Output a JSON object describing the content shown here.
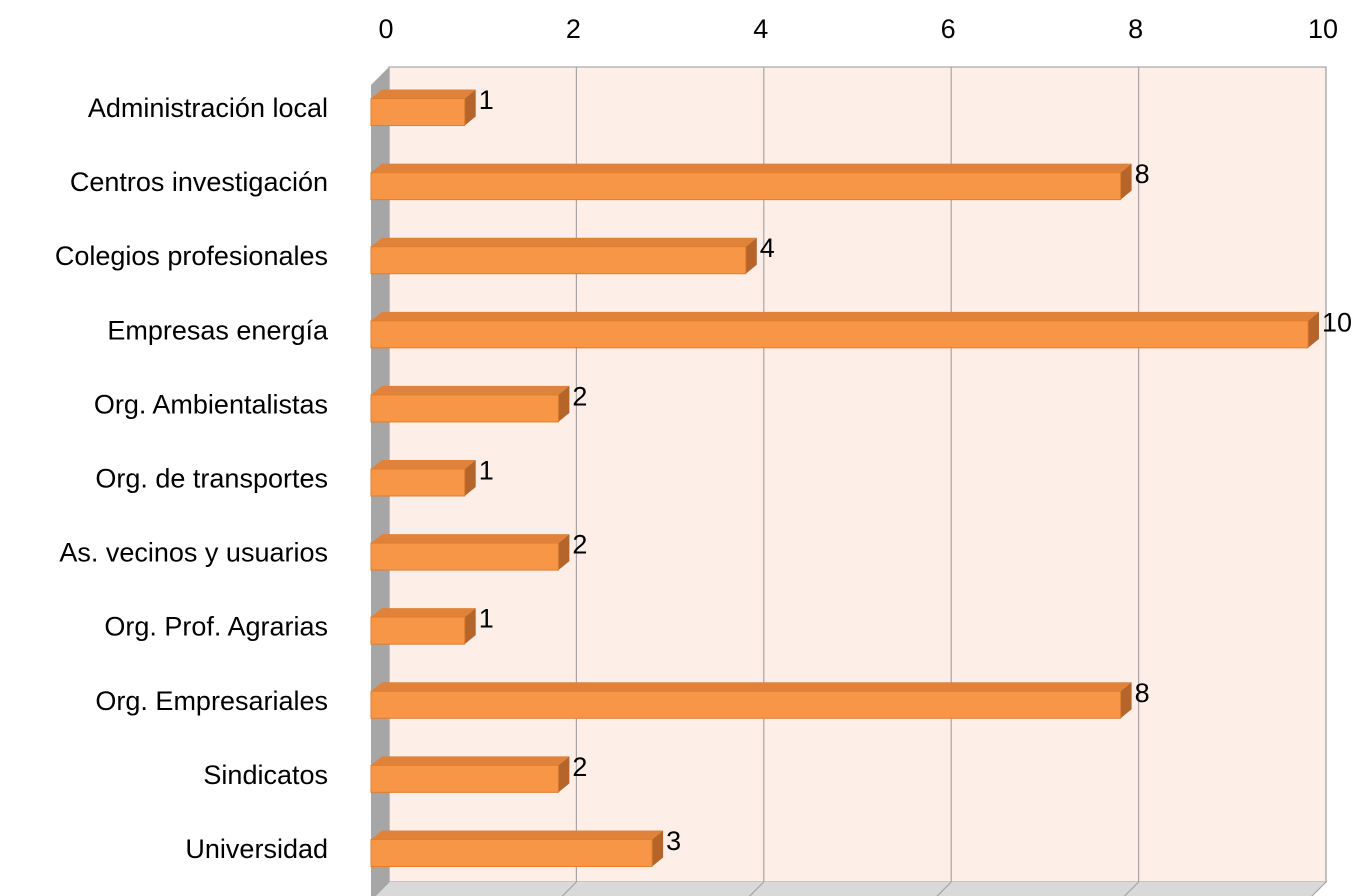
{
  "chart_data": {
    "type": "bar",
    "orientation": "horizontal",
    "style": "3d",
    "categories": [
      "Administración local",
      "Centros investigación",
      "Colegios profesionales",
      "Empresas energía",
      "Org. Ambientalistas",
      "Org. de transportes",
      "As. vecinos y usuarios",
      "Org. Prof. Agrarias",
      "Org. Empresariales",
      "Sindicatos",
      "Universidad"
    ],
    "values": [
      1,
      8,
      4,
      10,
      2,
      1,
      2,
      1,
      8,
      2,
      3
    ],
    "data_labels": [
      "1",
      "8",
      "4",
      "10",
      "2",
      "1",
      "2",
      "1",
      "8",
      "2",
      "3"
    ],
    "x_ticks": [
      "0",
      "2",
      "4",
      "6",
      "8",
      "10"
    ],
    "xlim": [
      0,
      10
    ],
    "x_axis_position": "top",
    "grid": true,
    "legend": false,
    "title": "",
    "xlabel": "",
    "ylabel": "",
    "colors": {
      "bar_front": "#F79646",
      "bar_top": "#E0823A",
      "bar_side": "#B5652A",
      "plot_background": "#FDEEE8",
      "grid_line": "#A6A6A6",
      "wall_side": "#A6A6A6",
      "floor": "#D9D9D9"
    }
  }
}
